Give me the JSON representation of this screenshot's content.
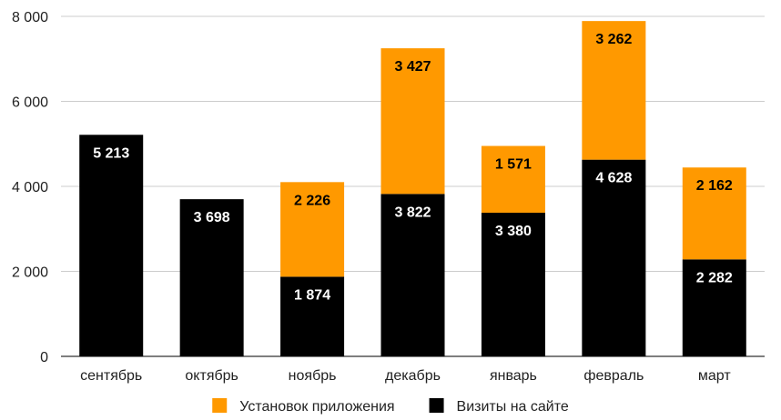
{
  "chart_data": {
    "type": "bar",
    "stacked": true,
    "categories": [
      "сентябрь",
      "октябрь",
      "ноябрь",
      "декабрь",
      "январь",
      "февраль",
      "март"
    ],
    "series": [
      {
        "name": "Визиты на сайте",
        "color": "#000000",
        "label_color": "#ffffff",
        "values": [
          5213,
          3698,
          1874,
          3822,
          3380,
          4628,
          2282
        ],
        "labels": [
          "5 213",
          "3 698",
          "1 874",
          "3 822",
          "3 380",
          "4 628",
          "2 282"
        ]
      },
      {
        "name": "Установок приложения",
        "color": "#ff9900",
        "label_color": "#000000",
        "values": [
          null,
          null,
          2226,
          3427,
          1571,
          3262,
          2162
        ],
        "labels": [
          "",
          "",
          "2 226",
          "3 427",
          "1 571",
          "3 262",
          "2 162"
        ]
      }
    ],
    "ylim": [
      0,
      8000
    ],
    "yticks": [
      0,
      2000,
      4000,
      6000,
      8000
    ],
    "ytick_labels": [
      "0",
      "2 000",
      "4 000",
      "6 000",
      "8 000"
    ],
    "grid": true,
    "grid_color": "#cccccc",
    "legend_position": "bottom",
    "legend_order": [
      1,
      0
    ]
  }
}
